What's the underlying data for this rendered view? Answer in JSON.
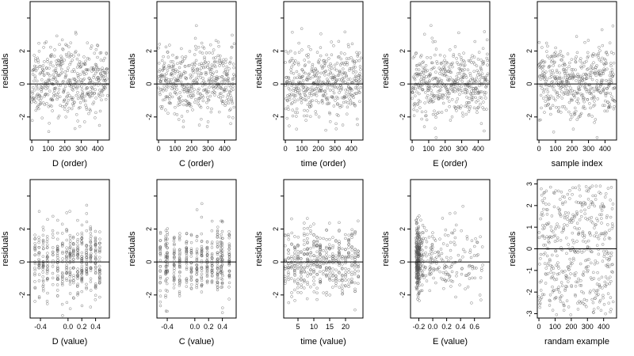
{
  "chart_data": [
    {
      "type": "scatter",
      "xlabel": "D (order)",
      "ylabel": "residuals",
      "xlim": [
        -10,
        470
      ],
      "ylim": [
        -3.4,
        5.0
      ],
      "xticks": [
        0,
        100,
        200,
        300,
        400
      ],
      "yticks": [
        -2,
        0,
        2
      ],
      "y_tick_marks_only": [
        4
      ],
      "hline": 0,
      "seed": 11,
      "n": 460,
      "xdist": "index",
      "ydist": "normal",
      "grid": false
    },
    {
      "type": "scatter",
      "xlabel": "C (order)",
      "ylabel": "residuals",
      "xlim": [
        -10,
        470
      ],
      "ylim": [
        -3.4,
        5.0
      ],
      "xticks": [
        0,
        100,
        200,
        300,
        400
      ],
      "yticks": [
        -2,
        0,
        2
      ],
      "y_tick_marks_only": [
        4
      ],
      "hline": 0,
      "seed": 23,
      "n": 460,
      "xdist": "index",
      "ydist": "normal",
      "grid": false
    },
    {
      "type": "scatter",
      "xlabel": "time (order)",
      "ylabel": "residuals",
      "xlim": [
        -10,
        470
      ],
      "ylim": [
        -3.4,
        5.0
      ],
      "xticks": [
        0,
        100,
        200,
        300,
        400
      ],
      "yticks": [
        -2,
        0,
        2
      ],
      "y_tick_marks_only": [
        4
      ],
      "hline": 0,
      "seed": 37,
      "n": 460,
      "xdist": "index",
      "ydist": "normal",
      "grid": false
    },
    {
      "type": "scatter",
      "xlabel": "E (order)",
      "ylabel": "residuals",
      "xlim": [
        -10,
        470
      ],
      "ylim": [
        -3.4,
        5.0
      ],
      "xticks": [
        0,
        100,
        200,
        300,
        400
      ],
      "yticks": [
        -2,
        0,
        2
      ],
      "y_tick_marks_only": [
        4
      ],
      "hline": 0,
      "seed": 41,
      "n": 460,
      "xdist": "index",
      "ydist": "normal",
      "grid": false
    },
    {
      "type": "scatter",
      "xlabel": "sample index",
      "ylabel": "residuals",
      "xlim": [
        -10,
        470
      ],
      "ylim": [
        -3.4,
        5.0
      ],
      "xticks": [
        0,
        100,
        200,
        300,
        400
      ],
      "yticks": [
        -2,
        0,
        2
      ],
      "y_tick_marks_only": [
        4
      ],
      "hline": 0,
      "seed": 53,
      "n": 460,
      "xdist": "index",
      "ydist": "normal",
      "grid": false
    },
    {
      "type": "scatter",
      "xlabel": "D (value)",
      "ylabel": "residuals",
      "xlim": [
        -0.55,
        0.6
      ],
      "ylim": [
        -3.4,
        5.0
      ],
      "xticks": [
        -0.4,
        0.0,
        0.2,
        0.4
      ],
      "xtick_labels": [
        "-0.4",
        "0.0",
        "0.2",
        "0.4"
      ],
      "yticks": [
        -2,
        0,
        2
      ],
      "y_tick_marks_only": [
        4
      ],
      "hline": 0,
      "seed": 67,
      "n": 460,
      "xdist": "clustered",
      "clusters": [
        -0.48,
        -0.42,
        -0.36,
        -0.3,
        -0.22,
        -0.15,
        -0.08,
        -0.02,
        0.03,
        0.08,
        0.14,
        0.2,
        0.27,
        0.33,
        0.4,
        0.46
      ],
      "ydist": "normal",
      "grid": false
    },
    {
      "type": "scatter",
      "xlabel": "C (value)",
      "ylabel": "residuals",
      "xlim": [
        -0.55,
        0.6
      ],
      "ylim": [
        -3.4,
        5.0
      ],
      "xticks": [
        -0.4,
        0.0,
        0.2,
        0.4
      ],
      "xtick_labels": [
        "-0.4",
        "0.0",
        "0.2",
        "0.4"
      ],
      "yticks": [
        -2,
        0,
        2
      ],
      "y_tick_marks_only": [
        4
      ],
      "hline": 0,
      "seed": 71,
      "n": 460,
      "xdist": "clustered",
      "clusters": [
        -0.5,
        -0.42,
        -0.4,
        -0.3,
        -0.22,
        -0.12,
        -0.05,
        0.03,
        0.1,
        0.18,
        0.25,
        0.33,
        0.38,
        0.4,
        0.5
      ],
      "ydist": "normal",
      "grid": false
    },
    {
      "type": "scatter",
      "xlabel": "time (value)",
      "ylabel": "residuals",
      "xlim": [
        0.5,
        25.5
      ],
      "ylim": [
        -3.4,
        5.0
      ],
      "xticks": [
        5,
        10,
        15,
        20
      ],
      "yticks": [
        -2,
        0,
        2
      ],
      "y_tick_marks_only": [
        4
      ],
      "hline": 0,
      "seed": 83,
      "n": 460,
      "xdist": "clustered",
      "clusters": [
        1,
        2,
        3,
        4,
        5,
        6,
        7,
        8,
        9,
        10,
        11,
        12,
        13,
        14,
        15,
        16,
        17,
        18,
        19,
        20,
        21,
        22,
        23,
        24
      ],
      "ydist": "normal",
      "grid": false
    },
    {
      "type": "scatter",
      "xlabel": "E (value)",
      "ylabel": "residuals",
      "xlim": [
        -0.32,
        0.82
      ],
      "ylim": [
        -3.4,
        5.0
      ],
      "xticks": [
        -0.2,
        0.0,
        0.2,
        0.4,
        0.6
      ],
      "xtick_labels": [
        "-0.2",
        "0.0",
        "0.2",
        "0.4",
        "0.6"
      ],
      "yticks": [
        -2,
        0,
        2
      ],
      "y_tick_marks_only": [
        4
      ],
      "hline": 0,
      "seed": 97,
      "n": 460,
      "xdist": "skewed",
      "ydist": "normal",
      "grid": false
    },
    {
      "type": "scatter",
      "xlabel": "randam example",
      "ylabel": "residuals",
      "xlim": [
        -10,
        480
      ],
      "ylim": [
        -3.2,
        3.2
      ],
      "xticks": [
        0,
        100,
        200,
        300,
        400
      ],
      "yticks": [
        -3,
        -2,
        -1,
        0,
        1,
        2,
        3
      ],
      "y_tick_marks_only": [],
      "hline": 0,
      "seed": 101,
      "n": 460,
      "xdist": "index",
      "ydist": "uniform",
      "grid": false
    }
  ],
  "colors": {
    "point": "#555555",
    "axis": "#000000",
    "background": "#ffffff",
    "hline": "#000000"
  }
}
